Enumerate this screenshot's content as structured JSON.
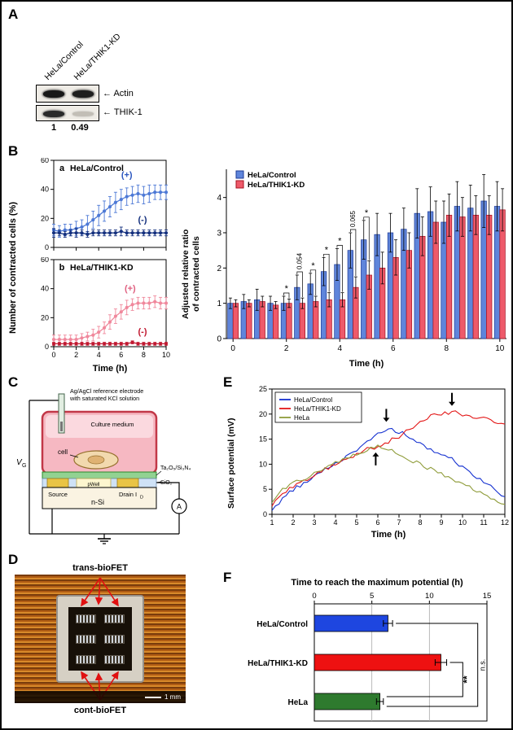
{
  "figure": {
    "panel_labels": {
      "A": "A",
      "B": "B",
      "C": "C",
      "D": "D",
      "E": "E",
      "F": "F"
    }
  },
  "panel_a": {
    "lane_labels": [
      "HeLa/Control",
      "HeLa/THIK1-KD"
    ],
    "arrow": "←",
    "band_labels": [
      "Actin",
      "THIK-1"
    ],
    "quantification": [
      "1",
      "0.49"
    ]
  },
  "schematic": {
    "electrode_label_line1": "Ag/AgCl reference electrode",
    "electrode_label_line2": "with saturated KCl solution",
    "culture_medium": "Culture medium",
    "cell": "cell",
    "gate_layer": "Ta₂O₅/Si₃N₄",
    "oxide": "SiO₂",
    "pwell": "pWell",
    "source": "Source",
    "drain": "Drain I",
    "drain_sub": "D",
    "nsi": "n-Si",
    "vg_main": "V",
    "vg_sub": "G",
    "ammeter": "A"
  },
  "panel_d": {
    "top_label": "trans-bioFET",
    "bottom_label": "cont-bioFET",
    "scale_label": "1 mm"
  },
  "chart_data": [
    {
      "id": "chart-a",
      "type": "line",
      "tag": "a",
      "title": "HeLa/Control",
      "ylabel": "Number of contracted cells (%)",
      "x": [
        0,
        0.5,
        1,
        1.5,
        2,
        2.5,
        3,
        3.5,
        4,
        4.5,
        5,
        5.5,
        6,
        6.5,
        7,
        7.5,
        8,
        8.5,
        9,
        9.5,
        10
      ],
      "xlim": [
        0,
        10
      ],
      "xticks": [
        0,
        2,
        4,
        6,
        8,
        10
      ],
      "xtick_labels": false,
      "ylim": [
        0,
        60
      ],
      "yticks": [
        0,
        20,
        40,
        60
      ],
      "frame": true,
      "series": [
        {
          "name": "(+)",
          "color": "#4d79d6",
          "marker": true,
          "values": [
            12,
            11,
            12,
            12,
            13,
            14,
            16,
            19,
            22,
            25,
            28,
            31,
            33,
            35,
            36,
            37,
            36,
            37,
            38,
            38,
            38
          ],
          "errors": [
            4,
            4,
            4,
            4,
            5,
            5,
            6,
            6,
            7,
            7,
            7,
            7,
            7,
            6,
            6,
            6,
            6,
            6,
            5,
            5,
            5
          ]
        },
        {
          "name": "(-)",
          "color": "#14307e",
          "marker": true,
          "values": [
            10,
            10,
            9,
            10,
            10,
            10,
            9,
            10,
            10,
            10,
            10,
            10,
            11,
            10,
            10,
            10,
            10,
            10,
            10,
            10,
            10
          ],
          "errors": [
            3,
            2,
            2,
            2,
            3,
            2,
            2,
            2,
            2,
            2,
            2,
            2,
            3,
            2,
            2,
            2,
            2,
            2,
            2,
            2,
            2
          ]
        }
      ],
      "inline_labels": [
        {
          "text": "(+)",
          "x": 6.5,
          "y": 48,
          "color": "#2c57c0"
        },
        {
          "text": "(-)",
          "x": 7.9,
          "y": 17,
          "color": "#14307e"
        }
      ]
    },
    {
      "id": "chart-b",
      "type": "line",
      "tag": "b",
      "title": "HeLa/THIK1-KD",
      "xlabel": "Time (h)",
      "x": [
        0,
        0.5,
        1,
        1.5,
        2,
        2.5,
        3,
        3.5,
        4,
        4.5,
        5,
        5.5,
        6,
        6.5,
        7,
        7.5,
        8,
        8.5,
        9,
        9.5,
        10
      ],
      "xlim": [
        0,
        10
      ],
      "xticks": [
        0,
        2,
        4,
        6,
        8,
        10
      ],
      "ylim": [
        0,
        60
      ],
      "yticks": [
        0,
        20,
        40,
        60
      ],
      "frame": true,
      "series": [
        {
          "name": "(+)",
          "color": "#f0889c",
          "marker": true,
          "values": [
            5,
            5,
            5,
            5,
            5,
            6,
            7,
            8,
            10,
            13,
            17,
            21,
            24,
            27,
            29,
            30,
            30,
            30,
            31,
            30,
            30
          ],
          "errors": [
            3,
            3,
            3,
            3,
            3,
            3,
            3,
            4,
            4,
            4,
            5,
            5,
            5,
            5,
            4,
            4,
            4,
            4,
            4,
            4,
            4
          ]
        },
        {
          "name": "(-)",
          "color": "#c01830",
          "marker": true,
          "values": [
            2,
            2,
            2,
            2,
            2,
            2,
            2,
            2,
            2,
            2,
            2,
            2,
            2,
            2,
            3,
            2,
            2,
            2,
            2,
            2,
            2
          ],
          "errors": [
            1,
            1,
            1,
            1,
            1,
            1,
            1,
            1,
            1,
            1,
            1,
            1,
            1,
            1,
            1,
            1,
            1,
            1,
            1,
            1,
            1
          ]
        }
      ],
      "inline_labels": [
        {
          "text": "(+)",
          "x": 6.8,
          "y": 38,
          "color": "#e06080"
        },
        {
          "text": "(-)",
          "x": 7.9,
          "y": 8.5,
          "color": "#c01830"
        }
      ]
    },
    {
      "id": "chart-c",
      "type": "grouped_bar",
      "tag": "c",
      "xlabel": "Time (h)",
      "ylabel_line1": "Adjusted relative ratio",
      "ylabel_line2": "of contracted cells",
      "x_categories": [
        0,
        0.5,
        1,
        1.5,
        2,
        2.5,
        3,
        3.5,
        4,
        4.5,
        5,
        5.5,
        6,
        6.5,
        7,
        7.5,
        8,
        8.5,
        9,
        9.5,
        10
      ],
      "xticks": [
        0,
        2,
        4,
        6,
        8,
        10
      ],
      "ylim": [
        0,
        4.8
      ],
      "yticks": [
        0,
        1,
        2,
        3,
        4
      ],
      "series": [
        {
          "name": "HeLa/Control",
          "color": "#5f85db",
          "edge": "#1d3a96",
          "values": [
            1.0,
            1.05,
            1.1,
            1.0,
            1.0,
            1.45,
            1.55,
            1.9,
            2.1,
            2.5,
            2.8,
            2.95,
            3.0,
            3.1,
            3.55,
            3.6,
            3.3,
            3.75,
            3.7,
            3.9,
            3.75
          ],
          "errors": [
            0.15,
            0.2,
            0.3,
            0.2,
            0.2,
            0.35,
            0.3,
            0.4,
            0.45,
            0.5,
            0.55,
            0.6,
            0.55,
            0.6,
            0.7,
            0.7,
            0.6,
            0.7,
            0.65,
            0.75,
            0.7
          ]
        },
        {
          "name": "HeLa/THIK1-KD",
          "color": "#ee5a6a",
          "edge": "#a5101f",
          "values": [
            1.0,
            1.0,
            1.05,
            0.95,
            1.0,
            1.0,
            1.05,
            1.1,
            1.1,
            1.45,
            1.8,
            2.0,
            2.3,
            2.5,
            2.9,
            3.3,
            3.5,
            3.45,
            3.5,
            3.5,
            3.65
          ],
          "errors": [
            0.1,
            0.1,
            0.15,
            0.1,
            0.12,
            0.15,
            0.15,
            0.2,
            0.2,
            0.3,
            0.4,
            0.45,
            0.5,
            0.5,
            0.55,
            0.6,
            0.6,
            0.55,
            0.55,
            0.55,
            0.6
          ]
        }
      ],
      "annotations": [
        {
          "index": 4,
          "label": "*"
        },
        {
          "index": 5,
          "label": "0.054",
          "rotated": true
        },
        {
          "index": 6,
          "label": "*"
        },
        {
          "index": 7,
          "label": "*"
        },
        {
          "index": 8,
          "label": "*"
        },
        {
          "index": 9,
          "label": "0.065",
          "rotated": true
        },
        {
          "index": 10,
          "label": "*"
        }
      ]
    },
    {
      "id": "chart-e",
      "type": "line",
      "xlabel": "Time (h)",
      "ylabel": "Surface potential (mV)",
      "x": [
        1,
        1.5,
        2,
        2.5,
        3,
        3.5,
        4,
        4.5,
        5,
        5.5,
        6,
        6.5,
        7,
        7.5,
        8,
        8.5,
        9,
        9.5,
        10,
        10.5,
        11,
        11.5,
        12
      ],
      "xlim": [
        1,
        12
      ],
      "xticks": [
        1,
        2,
        3,
        4,
        5,
        6,
        7,
        8,
        9,
        10,
        11,
        12
      ],
      "ylim": [
        0,
        25
      ],
      "yticks": [
        0,
        5,
        10,
        15,
        20,
        25
      ],
      "frame": true,
      "noise": 0.4,
      "legend": [
        "HeLa/Control",
        "HeLa/THIK1-KD",
        "HeLa"
      ],
      "series": [
        {
          "name": "HeLa/Control",
          "color": "#1430d0",
          "values": [
            1,
            3,
            5,
            6,
            7.5,
            9,
            10,
            11.5,
            13,
            14.5,
            16,
            17,
            16.5,
            15.5,
            14,
            13,
            12,
            11,
            9.5,
            8,
            6.5,
            5,
            3.5
          ]
        },
        {
          "name": "HeLa/THIK1-KD",
          "color": "#e31818",
          "values": [
            2,
            4,
            5.5,
            6.5,
            8,
            9,
            10,
            11,
            12,
            13,
            13.5,
            14.5,
            15.5,
            17,
            18.5,
            19.5,
            20,
            20.5,
            20,
            19.5,
            19,
            18.5,
            18
          ]
        },
        {
          "name": "HeLa",
          "color": "#8f9c3a",
          "values": [
            2.5,
            5,
            6.5,
            7,
            8,
            9.5,
            10.5,
            11,
            12,
            13,
            13.5,
            13,
            12,
            11,
            10,
            9,
            8,
            7,
            6,
            5,
            4,
            3,
            2
          ]
        }
      ],
      "arrows": [
        {
          "x": 6.4,
          "y": 18.6,
          "dir": "down"
        },
        {
          "x": 9.5,
          "y": 21.8,
          "dir": "down"
        },
        {
          "x": 5.9,
          "y": 12.2,
          "dir": "up"
        }
      ]
    },
    {
      "id": "chart-f",
      "type": "hbar",
      "title": "Time to reach the maximum potential (h)",
      "categories": [
        "HeLa/Control",
        "HeLa/THIK1-KD",
        "HeLa"
      ],
      "values": [
        6.4,
        11.0,
        5.7
      ],
      "errors": [
        0.4,
        0.5,
        0.3
      ],
      "colors": [
        "#1e46e0",
        "#ee1111",
        "#2e7a2e"
      ],
      "xlim": [
        0,
        15
      ],
      "xticks": [
        0,
        5,
        10,
        15
      ],
      "sig": [
        {
          "a": 0,
          "b": 2,
          "x": 14.2,
          "ob": 6,
          "label": "n.s."
        },
        {
          "a": 1,
          "b": 2,
          "x": 12.9,
          "ob": -6,
          "label": "**"
        }
      ]
    }
  ]
}
